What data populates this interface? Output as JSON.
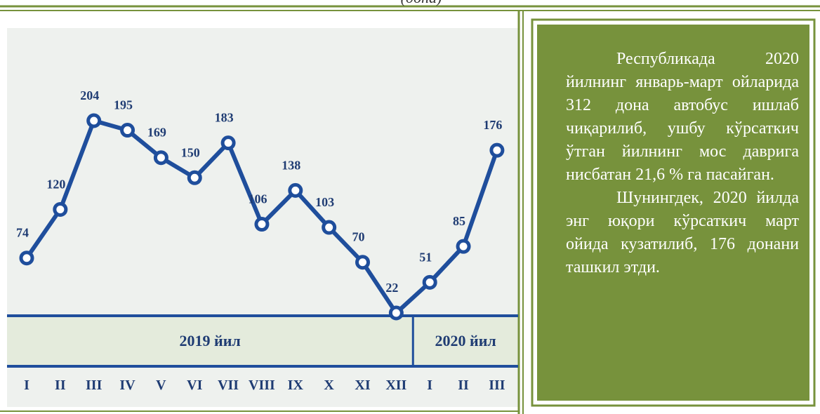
{
  "subtitle": "(дона)",
  "chart_data": {
    "type": "line",
    "groups": [
      {
        "label": "2019 йил",
        "categories": [
          "I",
          "II",
          "III",
          "IV",
          "V",
          "VI",
          "VII",
          "VIII",
          "IX",
          "X",
          "XI",
          "XII"
        ]
      },
      {
        "label": "2020 йил",
        "categories": [
          "I",
          "II",
          "III"
        ]
      }
    ],
    "series": [
      {
        "color": "#1f4e9c",
        "values": [
          74,
          120,
          204,
          195,
          169,
          150,
          183,
          106,
          138,
          103,
          70,
          22,
          51,
          85,
          176
        ]
      }
    ]
  },
  "panel": {
    "paragraphs": [
      "Республикада 2020 йилнинг январь-март ойларида 312 дона автобус ишлаб чиқарилиб, ушбу кўрсаткич ўтган йилнинг мос даврига нисбатан 21,6 % га пасайган.",
      "Шунингдек, 2020 йилда энг юқори кўрсаткич март ойида кузатилиб, 176 донани ташкил этди."
    ]
  }
}
